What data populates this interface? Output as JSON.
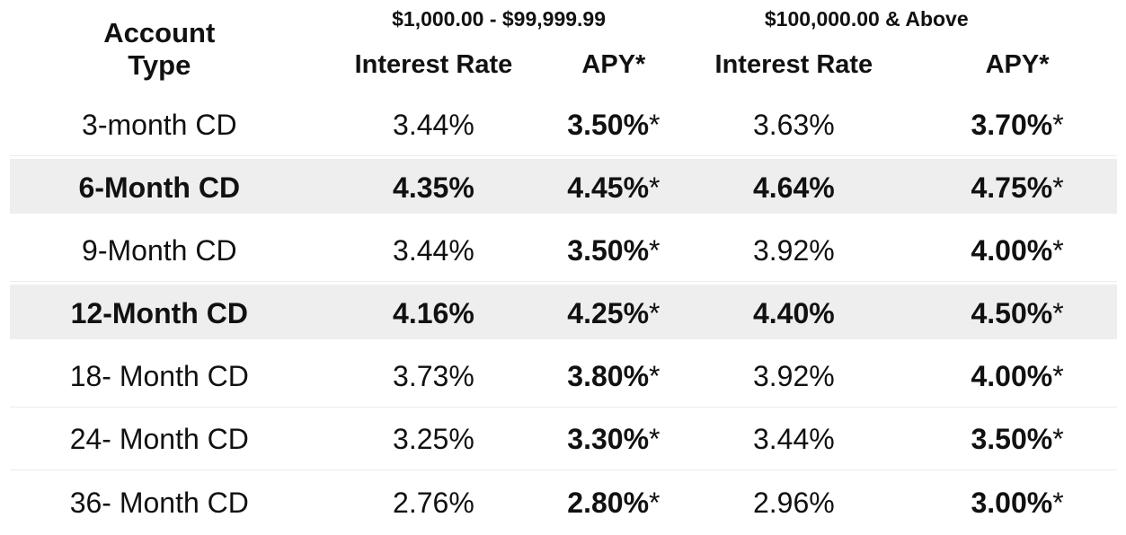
{
  "table": {
    "header": {
      "account_type": "Account Type",
      "tiers": [
        {
          "range": "$1,000.00 - $99,999.99",
          "interest_rate_label": "Interest Rate",
          "apy_label": "APY*"
        },
        {
          "range": "$100,000.00 & Above",
          "interest_rate_label": "Interest Rate",
          "apy_label": "APY*"
        }
      ]
    },
    "asterisk": "*",
    "rows": [
      {
        "account": "3-month CD",
        "rate1": "3.44%",
        "apy1": "3.50%",
        "rate2": "3.63%",
        "apy2": "3.70%",
        "highlight": false
      },
      {
        "account": "6-Month CD",
        "rate1": "4.35%",
        "apy1": "4.45%",
        "rate2": "4.64%",
        "apy2": "4.75%",
        "highlight": true
      },
      {
        "account": "9-Month CD",
        "rate1": "3.44%",
        "apy1": "3.50%",
        "rate2": "3.92%",
        "apy2": "4.00%",
        "highlight": false
      },
      {
        "account": "12-Month CD",
        "rate1": "4.16%",
        "apy1": "4.25%",
        "rate2": "4.40%",
        "apy2": "4.50%",
        "highlight": true
      },
      {
        "account": "18- Month CD",
        "rate1": "3.73%",
        "apy1": "3.80%",
        "rate2": "3.92%",
        "apy2": "4.00%",
        "highlight": false
      },
      {
        "account": "24- Month CD",
        "rate1": "3.25%",
        "apy1": "3.30%",
        "rate2": "3.44%",
        "apy2": "3.50%",
        "highlight": false
      },
      {
        "account": "36- Month CD",
        "rate1": "2.76%",
        "apy1": "2.80%",
        "rate2": "2.96%",
        "apy2": "3.00%",
        "highlight": false
      }
    ]
  },
  "colors": {
    "text_color": "#111111",
    "highlight_row_bg": "#eeeeee",
    "row_divider": "#ececec"
  }
}
